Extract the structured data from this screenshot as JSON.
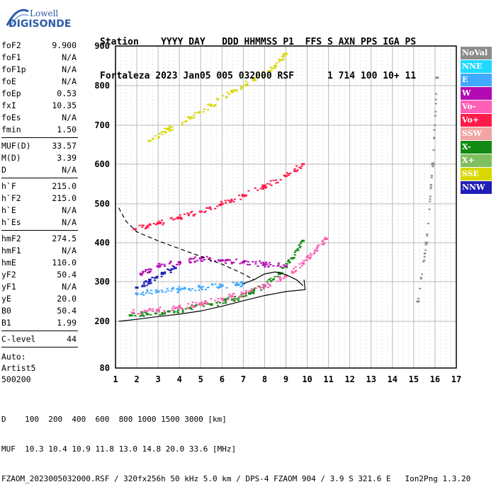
{
  "logo": {
    "line1": "Lowell",
    "line2": "DIGISONDE"
  },
  "header": {
    "labels": [
      "Station",
      "YYYY",
      "DAY",
      "DDD",
      "HHMMSS",
      "P1",
      "FFS",
      "S",
      "AXN",
      "PPS",
      "IGA",
      "PS"
    ],
    "values": [
      "Fortaleza",
      "2023",
      "Jan05",
      "005",
      "032000",
      "RSF",
      "",
      "1",
      "714",
      "100",
      "10+",
      "11"
    ]
  },
  "params": {
    "group1": [
      {
        "name": "foF2",
        "value": "9.900"
      },
      {
        "name": "foF1",
        "value": "N/A"
      },
      {
        "name": "foF1p",
        "value": "N/A"
      },
      {
        "name": "foE",
        "value": "N/A"
      },
      {
        "name": "foEp",
        "value": "0.53"
      },
      {
        "name": "fxI",
        "value": "10.35"
      },
      {
        "name": "foEs",
        "value": "N/A"
      },
      {
        "name": "fmin",
        "value": "1.50"
      }
    ],
    "group2": [
      {
        "name": "MUF(D)",
        "value": "33.57"
      },
      {
        "name": "M(D)",
        "value": "3.39"
      },
      {
        "name": "D",
        "value": "N/A"
      }
    ],
    "group3": [
      {
        "name": "h`F",
        "value": "215.0"
      },
      {
        "name": "h`F2",
        "value": "215.0"
      },
      {
        "name": "h`E",
        "value": "N/A"
      },
      {
        "name": "h`Es",
        "value": "N/A"
      }
    ],
    "group4": [
      {
        "name": "hmF2",
        "value": "274.5"
      },
      {
        "name": "hmF1",
        "value": "N/A"
      },
      {
        "name": "hmE",
        "value": "110.0"
      },
      {
        "name": "yF2",
        "value": "50.4"
      },
      {
        "name": "yF1",
        "value": "N/A"
      },
      {
        "name": "yE",
        "value": "20.0"
      },
      {
        "name": "B0",
        "value": "50.4"
      },
      {
        "name": "B1",
        "value": "1.99"
      }
    ],
    "clevel": {
      "name": "C-level",
      "value": "44"
    },
    "auto": [
      "Auto:",
      "Artist5",
      "500200"
    ]
  },
  "legend": [
    {
      "label": "NoVal",
      "color": "#8c8c8c"
    },
    {
      "label": "NNE",
      "color": "#1fd9ff"
    },
    {
      "label": "E",
      "color": "#41a9ff"
    },
    {
      "label": "W",
      "color": "#b30ab3"
    },
    {
      "label": "Vo-",
      "color": "#ff5fb4"
    },
    {
      "label": "Vo+",
      "color": "#ff1a4a"
    },
    {
      "label": "SSW",
      "color": "#f2a3a3"
    },
    {
      "label": "X-",
      "color": "#138a13"
    },
    {
      "label": "X+",
      "color": "#7fbf5f"
    },
    {
      "label": "SSE",
      "color": "#d8d800"
    },
    {
      "label": "NNW",
      "color": "#1f1fb8"
    }
  ],
  "footer": {
    "line1": "D    100  200  400  600  800 1000 1500 3000 [km]",
    "line2": "MUF  10.3 10.4 10.9 11.8 13.0 14.8 20.0 33.6 [MHz]",
    "line3": "FZAOM_2023005032000.RSF / 320fx256h 50 kHz 5.0 km / DPS-4 FZAOM 904 / 3.9 S 321.6 E   Ion2Png 1.3.20"
  },
  "chart_data": {
    "type": "scatter",
    "xlim": [
      1,
      17
    ],
    "ylim": [
      80,
      900
    ],
    "x_ticks": [
      "1",
      "2",
      "3",
      "4",
      "5",
      "6",
      "7",
      "8",
      "9",
      "10",
      "11",
      "12",
      "13",
      "14",
      "15",
      "16",
      "17"
    ],
    "y_ticks": [
      "80",
      "200",
      "300",
      "400",
      "500",
      "600",
      "700",
      "800",
      "900"
    ],
    "y_tick_values": [
      80,
      200,
      300,
      400,
      500,
      600,
      700,
      800,
      900
    ],
    "grid": true,
    "series": [
      {
        "name": "X-",
        "color": "#138a13",
        "trace": "o-trace first hop",
        "x": [
          1.7,
          2.5,
          3.5,
          4.5,
          5.5,
          6.5,
          7.3,
          8.0,
          8.7,
          9.3,
          9.8
        ],
        "y": [
          215,
          218,
          225,
          233,
          243,
          255,
          270,
          290,
          320,
          360,
          405
        ]
      },
      {
        "name": "Vo-",
        "color": "#ff5fb4",
        "trace": "x-trace first hop",
        "x": [
          1.8,
          3.0,
          4.0,
          5.0,
          6.0,
          7.0,
          8.0,
          9.0,
          9.8,
          10.4,
          10.9
        ],
        "y": [
          222,
          228,
          235,
          245,
          257,
          270,
          288,
          315,
          348,
          380,
          410
        ]
      },
      {
        "name": "E",
        "color": "#41a9ff",
        "trace": "oblique echoes",
        "x": [
          2.0,
          3.0,
          4.0,
          5.0,
          6.0,
          7.0
        ],
        "y": [
          270,
          275,
          280,
          285,
          290,
          295
        ]
      },
      {
        "name": "W",
        "color": "#b30ab3",
        "trace": "spread echoes",
        "x": [
          2.2,
          3.0,
          4.0,
          5.0,
          6.0,
          7.0,
          8.0,
          9.0
        ],
        "y": [
          320,
          340,
          350,
          360,
          355,
          350,
          345,
          340
        ]
      },
      {
        "name": "NNW",
        "color": "#1f1fb8",
        "trace": "spread echoes low",
        "x": [
          2.0,
          2.6,
          3.2,
          3.8
        ],
        "y": [
          285,
          300,
          320,
          335
        ]
      },
      {
        "name": "Vo+",
        "color": "#ff1a4a",
        "trace": "second hop",
        "x": [
          1.9,
          3.0,
          4.0,
          5.0,
          6.0,
          7.0,
          8.0,
          9.0,
          9.8
        ],
        "y": [
          435,
          450,
          465,
          480,
          500,
          520,
          545,
          570,
          600
        ]
      },
      {
        "name": "SSE",
        "color": "#d8d800",
        "trace": "third hop",
        "x": [
          2.6,
          3.5,
          4.5,
          5.5,
          6.5,
          7.5,
          8.5,
          9.0
        ],
        "y": [
          660,
          690,
          720,
          750,
          785,
          815,
          850,
          880
        ]
      },
      {
        "name": "NoVal",
        "color": "#8c8c8c",
        "trace": "right edge echoes",
        "x": [
          15.2,
          15.6,
          15.9,
          16.1
        ],
        "y": [
          250,
          400,
          600,
          820
        ]
      }
    ],
    "curves": [
      {
        "name": "profile",
        "style": "solid",
        "x": [
          1.15,
          2.0,
          3.0,
          4.0,
          5.0,
          6.0,
          7.0,
          8.0,
          9.0,
          9.9,
          9.85
        ],
        "y": [
          200,
          205,
          212,
          218,
          226,
          238,
          252,
          265,
          275,
          280,
          305
        ]
      },
      {
        "name": "model",
        "style": "dashed",
        "x": [
          1.15,
          1.5,
          2.0,
          3.0,
          4.0,
          5.0,
          6.0,
          7.0,
          7.5
        ],
        "y": [
          490,
          455,
          428,
          405,
          385,
          365,
          345,
          320,
          305
        ]
      },
      {
        "name": "fit",
        "style": "solid",
        "x": [
          7.0,
          7.5,
          8.0,
          8.5,
          9.0,
          9.5,
          9.8
        ],
        "y": [
          295,
          305,
          320,
          325,
          318,
          305,
          290
        ]
      }
    ]
  }
}
